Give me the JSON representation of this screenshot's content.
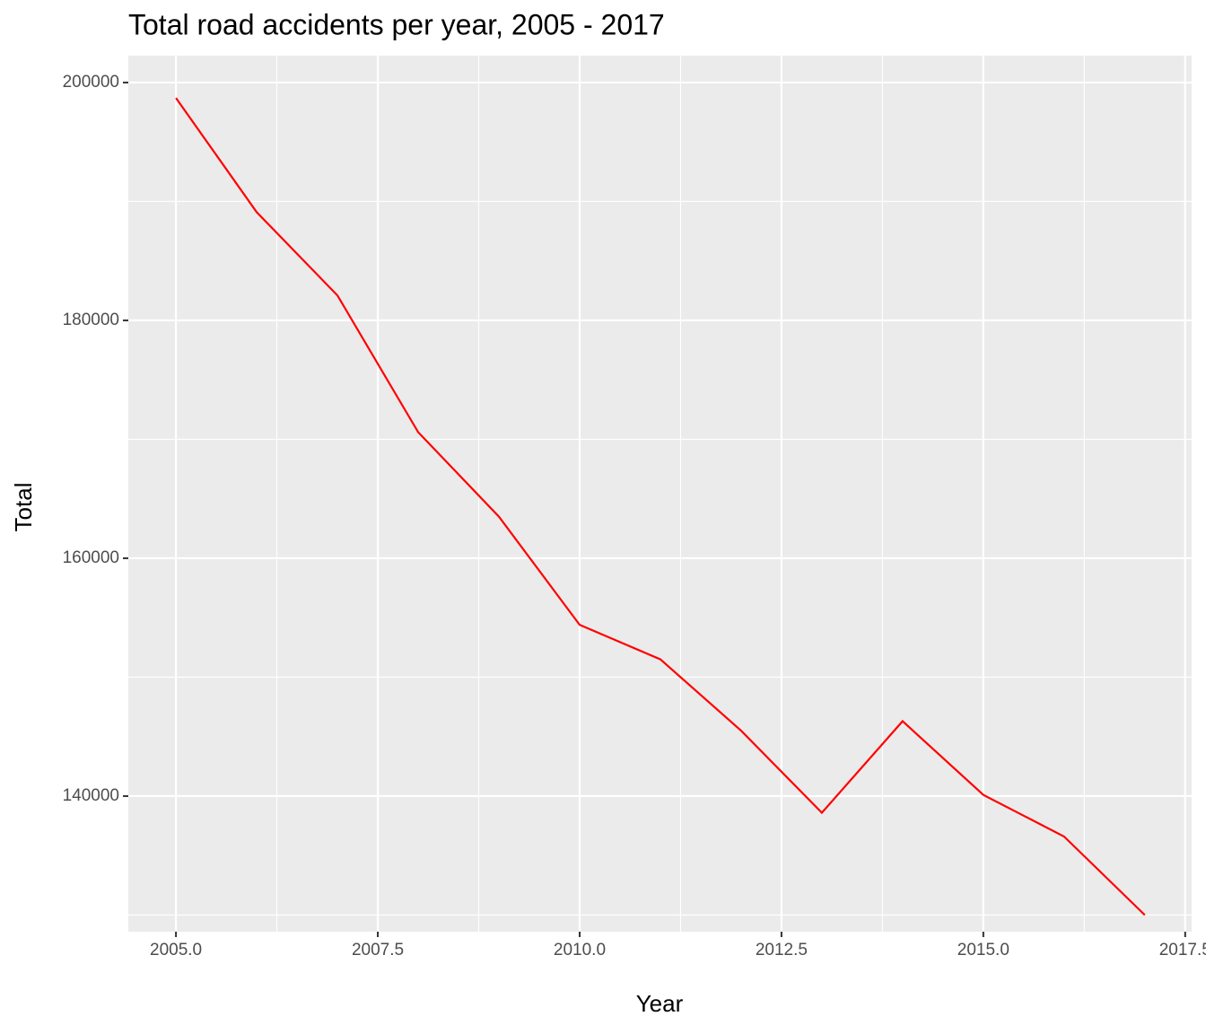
{
  "chart_data": {
    "type": "line",
    "title": "Total road accidents per year, 2005 - 2017",
    "x_label": "Year",
    "y_label": "Total",
    "x": [
      2005,
      2006,
      2007,
      2008,
      2009,
      2010,
      2011,
      2012,
      2013,
      2014,
      2015,
      2016,
      2017
    ],
    "series": [
      {
        "name": "Total",
        "color": "#ff0000",
        "values": [
          198700,
          189100,
          182100,
          170600,
          163500,
          154400,
          151500,
          145500,
          138600,
          146300,
          140100,
          136600,
          130000
        ]
      }
    ],
    "xlim": [
      2004.41,
      2017.58
    ],
    "ylim": [
      128600,
      202260
    ],
    "xticks": [
      {
        "value": 2005,
        "label": "2005.0"
      },
      {
        "value": 2007.5,
        "label": "2007.5"
      },
      {
        "value": 2010,
        "label": "2010.0"
      },
      {
        "value": 2012.5,
        "label": "2012.5"
      },
      {
        "value": 2015,
        "label": "2015.0"
      },
      {
        "value": 2017.5,
        "label": "2017.5"
      }
    ],
    "yticks": [
      140000,
      160000,
      180000,
      200000
    ],
    "x_minor_ticks": [
      2006.25,
      2008.75,
      2011.25,
      2013.75,
      2016.25
    ],
    "y_minor_ticks": [
      130000,
      150000,
      170000,
      190000
    ],
    "grid": true,
    "legend": false
  }
}
